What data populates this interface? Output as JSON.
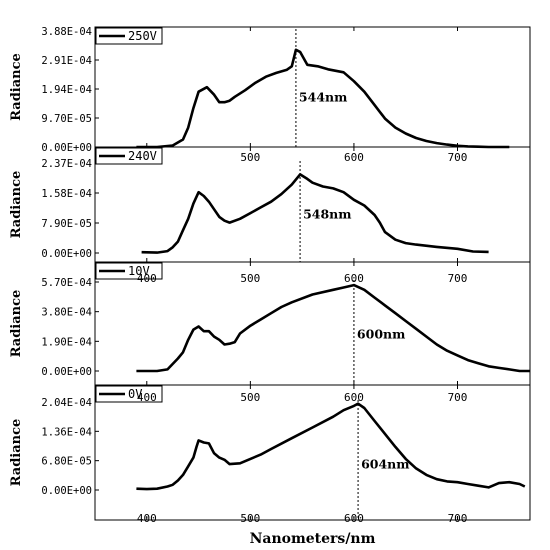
{
  "chart_data": [
    {
      "type": "line",
      "legend": "250V",
      "ylabel": "Radiance",
      "yticks": [
        "0.00E+00",
        "9.70E-05",
        "1.94E-04",
        "2.91E-04",
        "3.88E-04"
      ],
      "ylim": [
        0,
        0.000388
      ],
      "xlim": [
        350,
        770
      ],
      "xticks": [
        "400",
        "500",
        "600",
        "700"
      ],
      "peak_marker": {
        "x": 544,
        "label": "544nm"
      },
      "series": [
        {
          "x": [
            390,
            410,
            425,
            435,
            440,
            445,
            450,
            458,
            465,
            470,
            475,
            480,
            485,
            495,
            505,
            515,
            525,
            535,
            540,
            544,
            548,
            555,
            565,
            575,
            590,
            600,
            610,
            620,
            630,
            640,
            650,
            660,
            670,
            680,
            690,
            700,
            710,
            720,
            730,
            740,
            750
          ],
          "y": [
            0,
            0,
            5e-06,
            2.5e-05,
            6.5e-05,
            0.00013,
            0.000185,
            0.0002,
            0.000175,
            0.00015,
            0.00015,
            0.000155,
            0.000168,
            0.00019,
            0.000215,
            0.000235,
            0.000248,
            0.000258,
            0.00027,
            0.000325,
            0.000318,
            0.000275,
            0.00027,
            0.00026,
            0.00025,
            0.00022,
            0.000185,
            0.00014,
            9.5e-05,
            6.5e-05,
            4.5e-05,
            3e-05,
            2e-05,
            1.3e-05,
            8e-06,
            4e-06,
            2e-06,
            1e-06,
            0,
            0,
            0
          ]
        }
      ]
    },
    {
      "type": "line",
      "legend": "240V",
      "ylabel": "Radiance",
      "yticks": [
        "0.00E+00",
        "7.90E-05",
        "1.58E-04",
        "2.37E-04"
      ],
      "ylim": [
        0,
        0.000237
      ],
      "xlim": [
        350,
        770
      ],
      "xticks": [
        "500",
        "600",
        "700"
      ],
      "peak_marker": {
        "x": 548,
        "label": "548nm"
      },
      "series": [
        {
          "x": [
            395,
            410,
            420,
            425,
            430,
            435,
            440,
            445,
            450,
            455,
            460,
            465,
            470,
            475,
            480,
            490,
            500,
            510,
            520,
            530,
            540,
            548,
            555,
            560,
            570,
            580,
            590,
            600,
            610,
            620,
            625,
            630,
            640,
            650,
            660,
            680,
            700,
            715,
            730
          ],
          "y": [
            2e-06,
            1e-06,
            5e-06,
            1.5e-05,
            3e-05,
            6e-05,
            9e-05,
            0.00013,
            0.00016,
            0.00015,
            0.000135,
            0.000115,
            9.5e-05,
            8.5e-05,
            8e-05,
            9e-05,
            0.000105,
            0.00012,
            0.000135,
            0.000155,
            0.00018,
            0.000207,
            0.000195,
            0.000185,
            0.000175,
            0.00017,
            0.00016,
            0.00014,
            0.000125,
            0.0001,
            8e-05,
            5.5e-05,
            3.5e-05,
            2.6e-05,
            2.2e-05,
            1.6e-05,
            1.1e-05,
            4e-06,
            3e-06
          ]
        }
      ]
    },
    {
      "type": "line",
      "legend": "10V",
      "ylabel": "Radiance",
      "yticks": [
        "0.00E+00",
        "1.90E-04",
        "3.80E-04",
        "5.70E-04"
      ],
      "ylim": [
        0,
        0.00057
      ],
      "xlim": [
        350,
        770
      ],
      "xticks": [
        "400",
        "500",
        "600",
        "700"
      ],
      "peak_marker": {
        "x": 600,
        "label": "600nm"
      },
      "series": [
        {
          "x": [
            390,
            410,
            420,
            430,
            435,
            440,
            445,
            450,
            455,
            460,
            465,
            470,
            475,
            480,
            485,
            490,
            500,
            510,
            520,
            530,
            540,
            560,
            580,
            590,
            600,
            610,
            620,
            630,
            640,
            650,
            660,
            670,
            680,
            690,
            700,
            710,
            720,
            730,
            740,
            750,
            760,
            770
          ],
          "y": [
            0,
            0,
            1e-05,
            8e-05,
            0.00012,
            0.0002,
            0.000265,
            0.000285,
            0.000255,
            0.000255,
            0.00022,
            0.0002,
            0.00017,
            0.000175,
            0.000185,
            0.00024,
            0.00029,
            0.00033,
            0.00037,
            0.00041,
            0.00044,
            0.00049,
            0.00052,
            0.000535,
            0.00055,
            0.00052,
            0.00047,
            0.00042,
            0.00037,
            0.00032,
            0.00027,
            0.00022,
            0.00017,
            0.00013,
            0.0001,
            7e-05,
            5e-05,
            3e-05,
            2e-05,
            1e-05,
            0,
            0
          ]
        }
      ]
    },
    {
      "type": "line",
      "legend": "0V",
      "ylabel": "Radiance",
      "yticks": [
        "0.00E+00",
        "6.80E-05",
        "1.36E-04",
        "2.04E-04"
      ],
      "ylim": [
        0,
        0.000204
      ],
      "xlim": [
        350,
        770
      ],
      "xticks": [
        "400",
        "500",
        "600",
        "700"
      ],
      "xlabel": "Nanometers/nm",
      "peak_marker": {
        "x": 604,
        "label": "604nm"
      },
      "series": [
        {
          "x": [
            390,
            400,
            410,
            420,
            425,
            430,
            435,
            440,
            445,
            448,
            450,
            455,
            460,
            465,
            470,
            475,
            480,
            490,
            500,
            510,
            520,
            540,
            560,
            580,
            590,
            600,
            604,
            610,
            620,
            630,
            640,
            650,
            660,
            670,
            680,
            690,
            700,
            710,
            720,
            730,
            740,
            750,
            760,
            765
          ],
          "y": [
            3e-06,
            2e-06,
            3e-06,
            8e-06,
            1.2e-05,
            2.2e-05,
            3.5e-05,
            5.5e-05,
            7.5e-05,
            0.0001,
            0.000115,
            0.00011,
            0.000108,
            8.5e-05,
            7.5e-05,
            7e-05,
            6e-05,
            6.2e-05,
            7.2e-05,
            8.2e-05,
            9.5e-05,
            0.00012,
            0.000145,
            0.00017,
            0.000185,
            0.000195,
            0.0002,
            0.00019,
            0.00016,
            0.00013,
            0.0001,
            7.2e-05,
            5e-05,
            3.5e-05,
            2.5e-05,
            2e-05,
            1.8e-05,
            1.4e-05,
            1e-05,
            6e-06,
            1.6e-05,
            1.8e-05,
            1.4e-05,
            8e-06
          ]
        }
      ]
    }
  ]
}
